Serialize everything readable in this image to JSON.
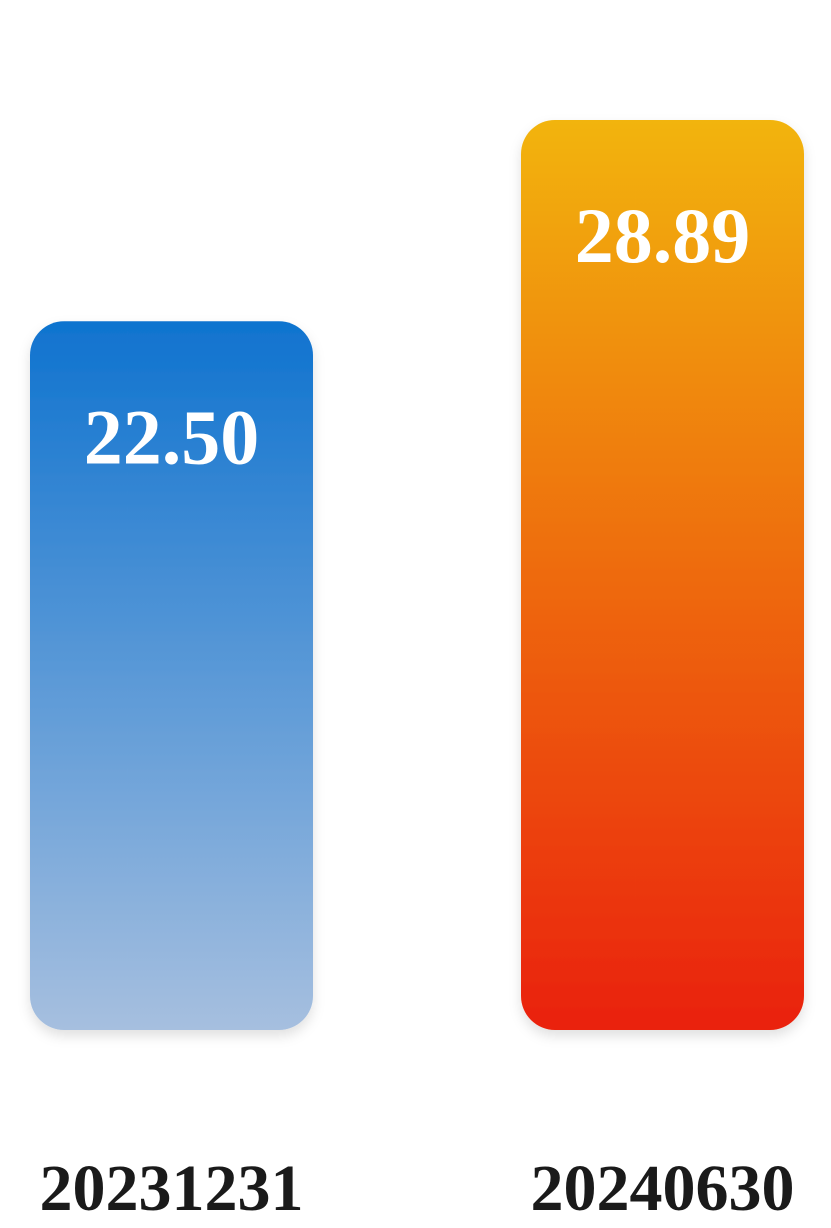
{
  "chart_data": {
    "type": "bar",
    "categories": [
      "20231231",
      "20240630"
    ],
    "values": [
      22.5,
      28.89
    ],
    "value_labels": [
      "22.50",
      "28.89"
    ],
    "title": "",
    "xlabel": "",
    "ylabel": "",
    "grid": false,
    "legend": "none",
    "bar_colors": [
      {
        "top": "#0f73cf",
        "bottom": "#a6bfdf"
      },
      {
        "top": "#f2b40a",
        "bottom": "#ea2109"
      }
    ]
  }
}
